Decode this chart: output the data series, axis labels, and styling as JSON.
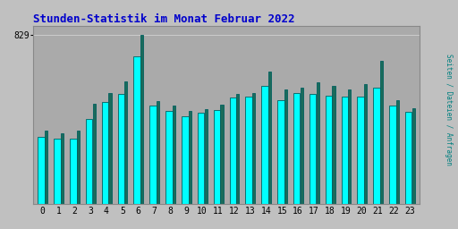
{
  "title": "Stunden-Statistik im Monat Februar 2022",
  "title_color": "#0000cc",
  "ylabel": "Seiten / Dateien / Anfragen",
  "ylabel_color": "#008080",
  "hours": [
    0,
    1,
    2,
    3,
    4,
    5,
    6,
    7,
    8,
    9,
    10,
    11,
    12,
    13,
    14,
    15,
    16,
    17,
    18,
    19,
    20,
    21,
    22,
    23
  ],
  "cyan_bars": [
    330,
    320,
    320,
    415,
    500,
    540,
    720,
    480,
    455,
    430,
    445,
    460,
    520,
    525,
    580,
    510,
    545,
    540,
    530,
    525,
    525,
    570,
    480,
    450
  ],
  "green_bars": [
    360,
    345,
    360,
    490,
    545,
    600,
    829,
    505,
    480,
    455,
    465,
    485,
    538,
    545,
    650,
    560,
    568,
    595,
    580,
    562,
    588,
    700,
    510,
    468
  ],
  "cyan_color": "#00ffff",
  "green_color": "#1a6b5a",
  "bg_color": "#c0c0c0",
  "plot_bg_color": "#aaaaaa",
  "bar_edge_color": "#006060",
  "ylim_max": 870,
  "ytick_value": 829,
  "ytick_label": "829",
  "gridline_color": "#cccccc",
  "figure_width": 5.12,
  "figure_height": 2.56,
  "dpi": 100
}
